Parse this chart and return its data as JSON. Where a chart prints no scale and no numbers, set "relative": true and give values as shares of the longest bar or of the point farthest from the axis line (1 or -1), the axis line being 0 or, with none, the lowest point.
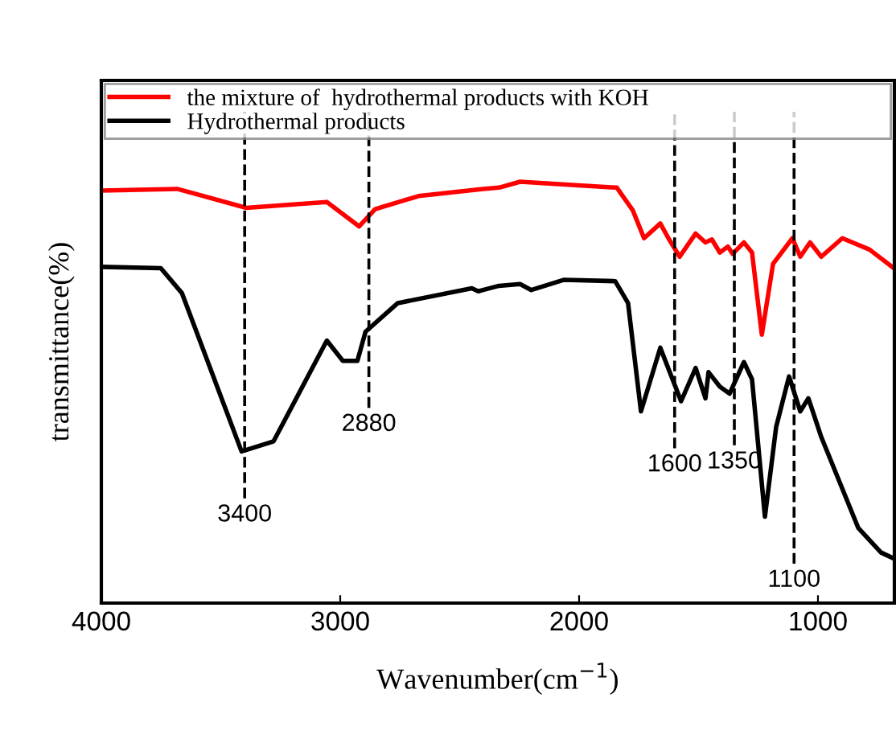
{
  "chart_data": {
    "type": "line",
    "xlabel": "Wavenumber(cm$^{−1}$)",
    "ylabel": "transmittance(%)",
    "relative": true,
    "xlim": [
      4000,
      680
    ],
    "xticks": [
      4000,
      3000,
      2000,
      1000
    ],
    "tick_labels": "x",
    "legend": "top",
    "grid": false,
    "line_style": "solid",
    "marker": "none",
    "series": [
      {
        "name": "the mixture of  hydrothermal products with KOH",
        "color": "#ff0000",
        "x": [
          4000,
          3683,
          3393,
          3056,
          2921,
          2854,
          2672,
          2402,
          2335,
          2247,
          1842,
          1775,
          1728,
          1660,
          1626,
          1579,
          1512,
          1471,
          1444,
          1411,
          1377,
          1357,
          1310,
          1276,
          1235,
          1188,
          1107,
          1074,
          1033,
          986,
          898,
          784,
          683
        ],
        "values": [
          0.979,
          0.983,
          0.938,
          0.952,
          0.894,
          0.935,
          0.966,
          0.983,
          0.986,
          1.0,
          0.986,
          0.932,
          0.866,
          0.901,
          0.866,
          0.822,
          0.877,
          0.856,
          0.863,
          0.832,
          0.846,
          0.829,
          0.856,
          0.832,
          0.637,
          0.805,
          0.866,
          0.822,
          0.856,
          0.822,
          0.866,
          0.839,
          0.795
        ]
      },
      {
        "name": "Hydrothermal products",
        "color": "#000000",
        "x": [
          4000,
          3751,
          3663,
          3413,
          3279,
          3056,
          2989,
          2928,
          2894,
          2759,
          2449,
          2422,
          2402,
          2335,
          2247,
          2200,
          2065,
          1849,
          1795,
          1741,
          1660,
          1573,
          1512,
          1471,
          1458,
          1411,
          1370,
          1310,
          1276,
          1222,
          1175,
          1121,
          1074,
          1040,
          986,
          831,
          736,
          683
        ],
        "values": [
          0.798,
          0.795,
          0.736,
          0.36,
          0.384,
          0.623,
          0.575,
          0.575,
          0.644,
          0.712,
          0.747,
          0.74,
          0.743,
          0.753,
          0.757,
          0.743,
          0.767,
          0.764,
          0.712,
          0.455,
          0.606,
          0.479,
          0.558,
          0.486,
          0.548,
          0.514,
          0.497,
          0.572,
          0.531,
          0.205,
          0.418,
          0.538,
          0.455,
          0.486,
          0.394,
          0.178,
          0.12,
          0.106
        ]
      }
    ],
    "ref_lines": [
      {
        "axis": "x",
        "value": 3400,
        "label": "3400",
        "color": "#000000",
        "line_style": "dashed"
      },
      {
        "axis": "x",
        "value": 2880,
        "label": "2880",
        "color": "#000000",
        "line_style": "dashed"
      },
      {
        "axis": "x",
        "value": 1600,
        "label": "1600",
        "color": "#000000",
        "line_style": "dashed"
      },
      {
        "axis": "x",
        "value": 1350,
        "label": "1350",
        "color": "#000000",
        "line_style": "dashed"
      },
      {
        "axis": "x",
        "value": 1100,
        "label": "1100",
        "color": "#000000",
        "line_style": "dashed"
      }
    ]
  }
}
